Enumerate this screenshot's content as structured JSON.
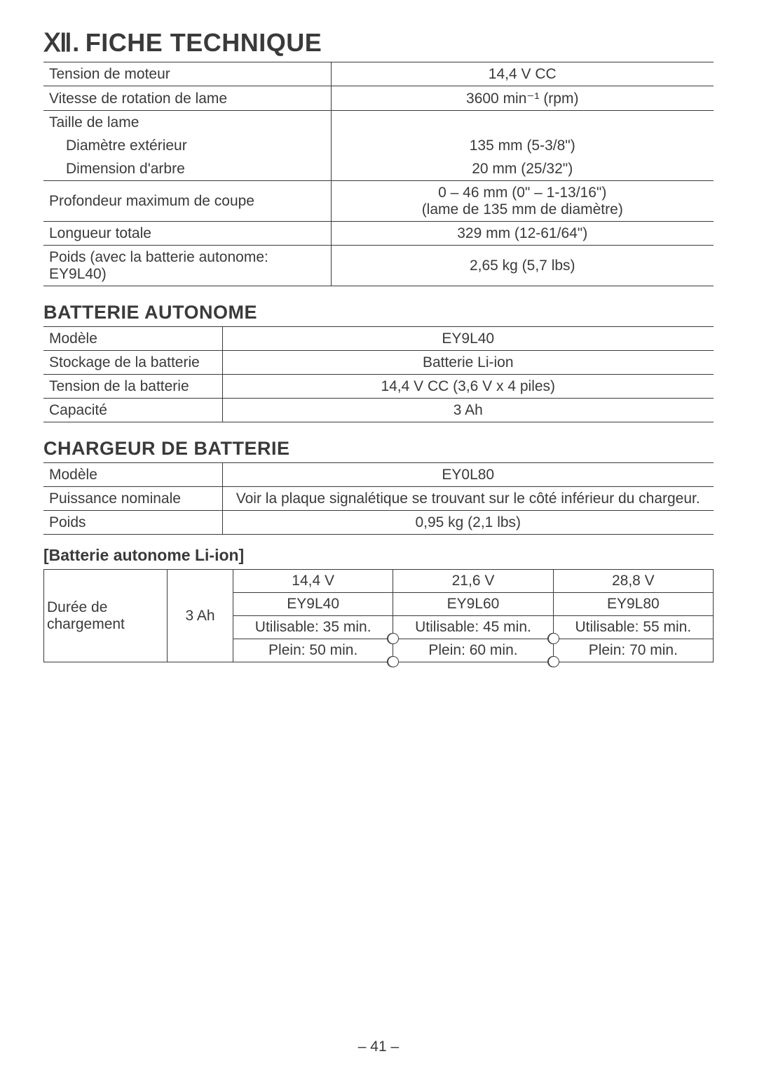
{
  "title": {
    "roman": "Ⅻ.",
    "text": "FICHE TECHNIQUE"
  },
  "specs": {
    "rows": [
      {
        "label": "Tension de moteur",
        "value": "14,4 V CC"
      },
      {
        "label": "Vitesse de rotation de lame",
        "value": "3600 min⁻¹ (rpm)"
      }
    ],
    "blade_header": "Taille de lame",
    "blade_rows": [
      {
        "label": "Diamètre extérieur",
        "value": "135 mm (5-3/8\")"
      },
      {
        "label": "Dimension d'arbre",
        "value": "20 mm (25/32\")"
      }
    ],
    "depth": {
      "label": "Profondeur maximum de coupe",
      "value_l1": "0 – 46 mm (0\" – 1-13/16\")",
      "value_l2": "(lame de 135 mm de diamètre)"
    },
    "rest": [
      {
        "label": "Longueur totale",
        "value": "329 mm (12-61/64\")"
      },
      {
        "label": "Poids (avec la batterie autonome: EY9L40)",
        "value": "2,65 kg (5,7 lbs)"
      }
    ]
  },
  "battery": {
    "heading": "BATTERIE AUTONOME",
    "rows": [
      {
        "label": "Modèle",
        "value": "EY9L40"
      },
      {
        "label": "Stockage de la batterie",
        "value": "Batterie Li-ion"
      },
      {
        "label": "Tension de la batterie",
        "value": "14,4 V CC (3,6 V x 4 piles)"
      },
      {
        "label": "Capacité",
        "value": "3 Ah"
      }
    ]
  },
  "charger": {
    "heading": "CHARGEUR DE BATTERIE",
    "rows": [
      {
        "label": "Modèle",
        "value": "EY0L80"
      },
      {
        "label": "Puissance nominale",
        "value": "Voir la plaque signalétique se trouvant sur le côté inférieur du chargeur."
      },
      {
        "label": "Poids",
        "value": "0,95 kg (2,1 lbs)"
      }
    ]
  },
  "li_ion": {
    "heading": "[Batterie autonome Li-ion]",
    "row_label": "Durée de chargement",
    "capacity": "3 Ah",
    "cols": [
      {
        "voltage": "14,4 V",
        "model": "EY9L40",
        "usable": "Utilisable: 35 min.",
        "full": "Plein: 50 min."
      },
      {
        "voltage": "21,6 V",
        "model": "EY9L60",
        "usable": "Utilisable: 45 min.",
        "full": "Plein: 60 min."
      },
      {
        "voltage": "28,8 V",
        "model": "EY9L80",
        "usable": "Utilisable: 55 min.",
        "full": "Plein: 70 min."
      }
    ]
  },
  "page_number": "– 41 –"
}
